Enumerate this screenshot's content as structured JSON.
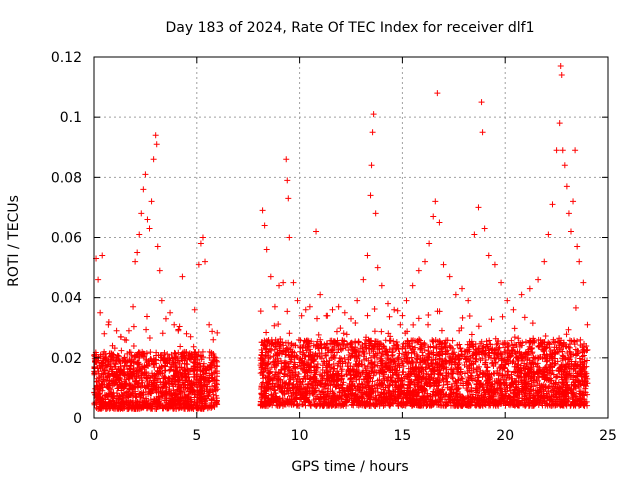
{
  "chart_data": {
    "type": "scatter",
    "title": "Day 183 of 2024, Rate Of TEC Index for receiver dlf1",
    "xlabel": "GPS time / hours",
    "ylabel": "ROTI / TECUs",
    "xlim": [
      0,
      25
    ],
    "ylim": [
      0,
      0.12
    ],
    "x_ticks": [
      0,
      5,
      10,
      15,
      20,
      25
    ],
    "x_tick_labels": [
      "0",
      "5",
      "10",
      "15",
      "20",
      "25"
    ],
    "y_ticks": [
      0,
      0.02,
      0.04,
      0.06,
      0.08,
      0.1,
      0.12
    ],
    "y_tick_labels": [
      "0",
      "0.02",
      "0.04",
      "0.06",
      "0.08",
      "0.1",
      "0.12"
    ],
    "grid": true,
    "legend": "none",
    "marker": "plus",
    "color": "#ff0000",
    "series": [
      {
        "points": [
          [
            0.1,
            0.053
          ],
          [
            0.2,
            0.046
          ],
          [
            0.3,
            0.035
          ],
          [
            0.4,
            0.054
          ],
          [
            0.5,
            0.028
          ],
          [
            0.7,
            0.031
          ],
          [
            0.9,
            0.024
          ],
          [
            1.1,
            0.029
          ],
          [
            1.3,
            0.027
          ],
          [
            1.5,
            0.026
          ],
          [
            1.7,
            0.029
          ],
          [
            1.9,
            0.037
          ],
          [
            2.0,
            0.052
          ],
          [
            2.1,
            0.055
          ],
          [
            2.2,
            0.061
          ],
          [
            2.3,
            0.068
          ],
          [
            2.4,
            0.076
          ],
          [
            2.5,
            0.081
          ],
          [
            2.6,
            0.066
          ],
          [
            2.7,
            0.063
          ],
          [
            2.8,
            0.072
          ],
          [
            2.9,
            0.086
          ],
          [
            3.0,
            0.094
          ],
          [
            3.05,
            0.091
          ],
          [
            3.1,
            0.057
          ],
          [
            3.2,
            0.049
          ],
          [
            3.3,
            0.039
          ],
          [
            3.5,
            0.033
          ],
          [
            3.7,
            0.035
          ],
          [
            3.9,
            0.031
          ],
          [
            4.1,
            0.029
          ],
          [
            4.3,
            0.047
          ],
          [
            4.5,
            0.028
          ],
          [
            4.7,
            0.027
          ],
          [
            4.9,
            0.036
          ],
          [
            5.1,
            0.051
          ],
          [
            5.2,
            0.058
          ],
          [
            5.3,
            0.06
          ],
          [
            5.4,
            0.052
          ],
          [
            5.6,
            0.031
          ],
          [
            5.8,
            0.026
          ],
          [
            8.2,
            0.069
          ],
          [
            8.3,
            0.064
          ],
          [
            8.4,
            0.056
          ],
          [
            8.6,
            0.047
          ],
          [
            8.8,
            0.037
          ],
          [
            9.0,
            0.044
          ],
          [
            9.2,
            0.045
          ],
          [
            9.35,
            0.086
          ],
          [
            9.4,
            0.079
          ],
          [
            9.45,
            0.073
          ],
          [
            9.5,
            0.06
          ],
          [
            9.7,
            0.045
          ],
          [
            9.9,
            0.039
          ],
          [
            10.1,
            0.034
          ],
          [
            10.3,
            0.036
          ],
          [
            10.5,
            0.037
          ],
          [
            10.8,
            0.062
          ],
          [
            11.0,
            0.041
          ],
          [
            11.3,
            0.034
          ],
          [
            11.6,
            0.036
          ],
          [
            11.9,
            0.037
          ],
          [
            12.2,
            0.035
          ],
          [
            12.5,
            0.033
          ],
          [
            12.8,
            0.039
          ],
          [
            13.1,
            0.046
          ],
          [
            13.3,
            0.054
          ],
          [
            13.45,
            0.074
          ],
          [
            13.5,
            0.084
          ],
          [
            13.55,
            0.095
          ],
          [
            13.6,
            0.101
          ],
          [
            13.7,
            0.068
          ],
          [
            13.8,
            0.05
          ],
          [
            14.0,
            0.044
          ],
          [
            14.3,
            0.038
          ],
          [
            14.6,
            0.036
          ],
          [
            14.9,
            0.031
          ],
          [
            15.2,
            0.039
          ],
          [
            15.5,
            0.044
          ],
          [
            15.8,
            0.049
          ],
          [
            16.1,
            0.052
          ],
          [
            16.3,
            0.058
          ],
          [
            16.5,
            0.067
          ],
          [
            16.6,
            0.072
          ],
          [
            16.7,
            0.108
          ],
          [
            16.8,
            0.065
          ],
          [
            17.0,
            0.051
          ],
          [
            17.3,
            0.047
          ],
          [
            17.6,
            0.041
          ],
          [
            17.9,
            0.043
          ],
          [
            18.2,
            0.039
          ],
          [
            18.5,
            0.061
          ],
          [
            18.7,
            0.07
          ],
          [
            18.85,
            0.105
          ],
          [
            18.9,
            0.095
          ],
          [
            19.0,
            0.063
          ],
          [
            19.2,
            0.054
          ],
          [
            19.5,
            0.051
          ],
          [
            19.8,
            0.045
          ],
          [
            20.1,
            0.039
          ],
          [
            20.4,
            0.036
          ],
          [
            20.8,
            0.041
          ],
          [
            21.2,
            0.043
          ],
          [
            21.6,
            0.046
          ],
          [
            21.9,
            0.052
          ],
          [
            22.1,
            0.061
          ],
          [
            22.3,
            0.071
          ],
          [
            22.5,
            0.089
          ],
          [
            22.65,
            0.098
          ],
          [
            22.7,
            0.117
          ],
          [
            22.75,
            0.114
          ],
          [
            22.8,
            0.089
          ],
          [
            22.9,
            0.084
          ],
          [
            23.0,
            0.077
          ],
          [
            23.1,
            0.068
          ],
          [
            23.2,
            0.062
          ],
          [
            23.3,
            0.072
          ],
          [
            23.4,
            0.089
          ],
          [
            23.5,
            0.057
          ],
          [
            23.6,
            0.052
          ],
          [
            23.8,
            0.045
          ],
          [
            24.0,
            0.031
          ]
        ]
      }
    ],
    "bulk_band": [
      {
        "x_start": 0.0,
        "x_end": 6.0,
        "y_low": 0.003,
        "y_high": 0.022
      },
      {
        "x_start": 8.1,
        "x_end": 24.0,
        "y_low": 0.004,
        "y_high": 0.026
      }
    ]
  }
}
